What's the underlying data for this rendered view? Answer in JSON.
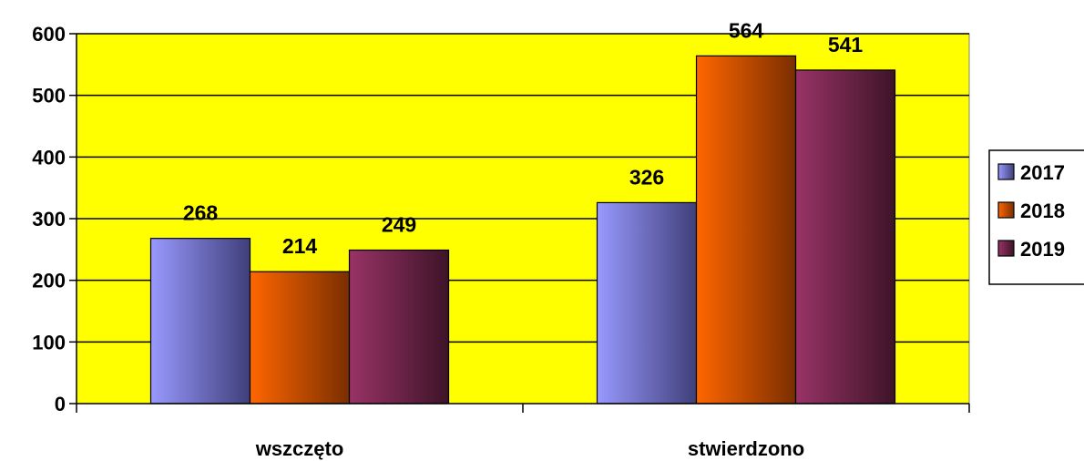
{
  "chart_data": {
    "type": "bar",
    "categories": [
      "wszczęto",
      "stwierdzono"
    ],
    "series": [
      {
        "name": "2017",
        "values": [
          268,
          326
        ],
        "color_light": "#9999ff",
        "color_dark": "#3f3f7a"
      },
      {
        "name": "2018",
        "values": [
          214,
          564
        ],
        "color_light": "#ff6600",
        "color_dark": "#7a2e00"
      },
      {
        "name": "2019",
        "values": [
          249,
          541
        ],
        "color_light": "#993366",
        "color_dark": "#3d1428"
      }
    ],
    "ylim": [
      0,
      600
    ],
    "yticks": [
      0,
      100,
      200,
      300,
      400,
      500,
      600
    ],
    "ytick_labels": [
      "0",
      "100",
      "200",
      "300",
      "400",
      "500",
      "600"
    ],
    "grid": true,
    "legend_position": "right",
    "plot_background": "#ffff00",
    "title": "",
    "xlabel": "",
    "ylabel": ""
  }
}
